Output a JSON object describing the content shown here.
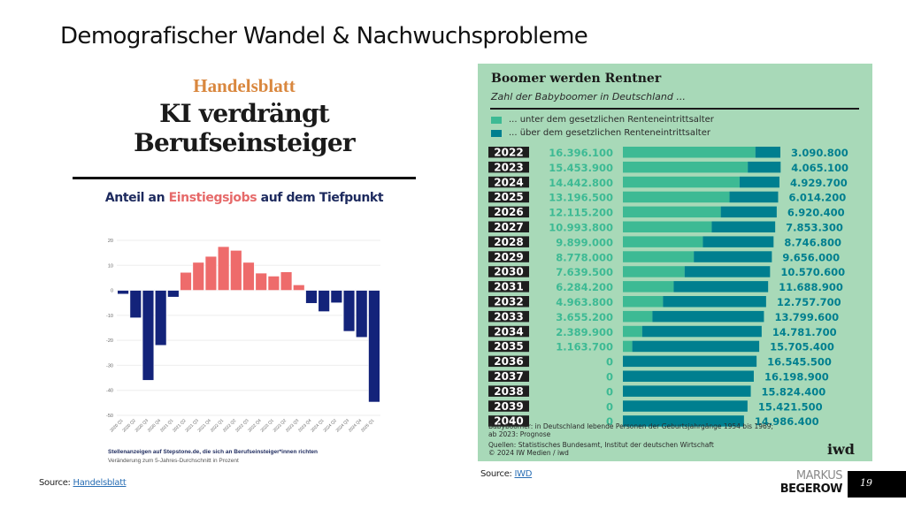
{
  "slide": {
    "title": "Demografischer Wandel & Nachwuchsprobleme",
    "page_number": "19",
    "brand_line1": "MARKUS",
    "brand_line2": "BEGEROW"
  },
  "sources": {
    "left_prefix": "Source: ",
    "left_link": "Handelsblatt",
    "right_prefix": "Source: ",
    "right_link": "IWD"
  },
  "handelsblatt": {
    "brand": "Handelsblatt",
    "headline_line1": "KI verdrängt",
    "headline_line2": "Berufseinsteiger",
    "subtitle_pre": "Anteil an ",
    "subtitle_accent": "Einstiegsjobs",
    "subtitle_post": " auf dem Tiefpunkt",
    "note_line1": "Stellenanzeigen auf Stepstone.de, die sich an Berufseinsteiger*innen richten",
    "note_line2": "Veränderung zum 5-Jahres-Durchschnitt in Prozent",
    "colors": {
      "positive": "#ee6b6b",
      "negative": "#13237a"
    }
  },
  "iwd": {
    "title": "Boomer werden Rentner",
    "subtitle": "Zahl der Babyboomer in Deutschland ...",
    "legend_under": "... unter dem gesetzlichen Renteneintrittsalter",
    "legend_over": "... über dem gesetzlichen Renteneintrittsalter",
    "foot_line1": "Babyboomer: in Deutschland lebende Personen der Geburtsjahrgänge 1954 bis 1969;",
    "foot_line2": "ab 2023: Prognose",
    "foot_line3": "Quellen: Statistisches Bundesamt, Institut der deutschen Wirtschaft",
    "foot_line4": "© 2024 IW Medien / iwd",
    "logo": "iwd",
    "colors": {
      "under": "#3dba94",
      "over": "#007f8f",
      "year_bg": "#1e1e1e"
    }
  },
  "chart_data": [
    {
      "type": "bar",
      "title": "Anteil an Einstiegsjobs auf dem Tiefpunkt",
      "xlabel": "",
      "ylabel": "Veränderung zum 5-Jahres-Durchschnitt in Prozent",
      "ylim": [
        -50,
        20
      ],
      "yticks": [
        20,
        10,
        0,
        -10,
        -20,
        -30,
        -40,
        -50
      ],
      "grid": true,
      "categories": [
        "2020 Q1",
        "2020 Q2",
        "2020 Q3",
        "2020 Q4",
        "2021 Q1",
        "2021 Q2",
        "2021 Q3",
        "2021 Q4",
        "2022 Q1",
        "2022 Q2",
        "2022 Q3",
        "2022 Q4",
        "2023 Q1",
        "2023 Q2",
        "2023 Q3",
        "2023 Q4",
        "2024 Q1",
        "2024 Q2",
        "2024 Q3",
        "2024 Q4",
        "2025 Q1"
      ],
      "values": [
        -1.5,
        -11,
        -36,
        -22,
        -2.7,
        7.2,
        11.2,
        13.6,
        17.5,
        16,
        11.2,
        6.9,
        5.7,
        7.4,
        2.2,
        -5.2,
        -8.5,
        -5.0,
        -16.4,
        -18.8,
        -44.7
      ]
    },
    {
      "type": "bar",
      "stacked": true,
      "orientation": "horizontal",
      "title": "Boomer werden Rentner",
      "subtitle": "Zahl der Babyboomer in Deutschland ...",
      "categories": [
        "2022",
        "2023",
        "2024",
        "2025",
        "2026",
        "2027",
        "2028",
        "2029",
        "2030",
        "2031",
        "2032",
        "2033",
        "2034",
        "2035",
        "2036",
        "2037",
        "2038",
        "2039",
        "2040"
      ],
      "series": [
        {
          "name": "... unter dem gesetzlichen Renteneintrittsalter",
          "values": [
            16396100,
            15453900,
            14442800,
            13196500,
            12115200,
            10993800,
            9899000,
            8778000,
            7639500,
            6284200,
            4963800,
            3655200,
            2389900,
            1163700,
            0,
            0,
            0,
            0,
            0
          ],
          "labels": [
            "16.396.100",
            "15.453.900",
            "14.442.800",
            "13.196.500",
            "12.115.200",
            "10.993.800",
            "9.899.000",
            "8.778.000",
            "7.639.500",
            "6.284.200",
            "4.963.800",
            "3.655.200",
            "2.389.900",
            "1.163.700",
            "0",
            "0",
            "0",
            "0",
            "0"
          ]
        },
        {
          "name": "... über dem gesetzlichen Renteneintrittsalter",
          "values": [
            3090800,
            4065100,
            4929700,
            6014200,
            6920400,
            7853300,
            8746800,
            9656000,
            10570600,
            11688900,
            12757700,
            13799600,
            14781700,
            15705400,
            16545500,
            16198900,
            15824400,
            15421500,
            14986400
          ],
          "labels": [
            "3.090.800",
            "4.065.100",
            "4.929.700",
            "6.014.200",
            "6.920.400",
            "7.853.300",
            "8.746.800",
            "9.656.000",
            "10.570.600",
            "11.688.900",
            "12.757.700",
            "13.799.600",
            "14.781.700",
            "15.705.400",
            "16.545.500",
            "16.198.900",
            "15.824.400",
            "15.421.500",
            "14.986.400"
          ]
        }
      ]
    }
  ]
}
